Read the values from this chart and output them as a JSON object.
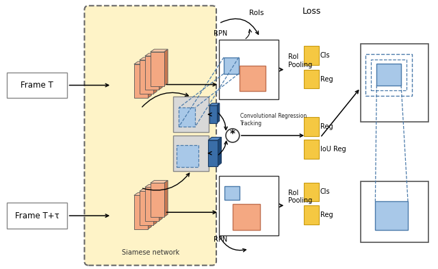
{
  "fig_width": 6.4,
  "fig_height": 3.93,
  "bg_color": "#ffffff",
  "siamese_bg": "#FEF3C7",
  "salmon_color": "#F4A882",
  "salmon_side": "#C87850",
  "salmon_top": "#F8C8A8",
  "gray_front": "#C8C8C8",
  "gray_side": "#909090",
  "gray_top": "#B0B0B0",
  "blue_dark_front": "#3A6EA8",
  "blue_dark_side": "#1E4878",
  "blue_dark_top": "#5A8EC8",
  "blue_light_fill": "#A8C8E8",
  "blue_light_edge": "#4A7AAA",
  "yellow_fill": "#F5C842",
  "yellow_edge": "#C89A10",
  "frame_T_label": "Frame T",
  "frame_Ttau_label": "Frame T+τ",
  "siamese_label": "Siamese network",
  "rpn_label": "RPN",
  "rois_label": "RoIs",
  "roi_pooling_label": "RoI\nPooling",
  "loss_label": "Loss",
  "cls_label": "Cls",
  "reg_label": "Reg",
  "iou_reg_label": "IoU Reg",
  "crt_label": "Convolutional Regression\nTracking"
}
